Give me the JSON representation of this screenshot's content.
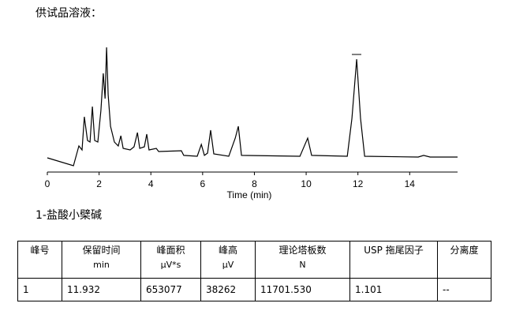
{
  "header": {
    "title": "供试品溶液："
  },
  "chart_data": {
    "type": "line",
    "xlabel": "Time (min)",
    "color": "#000000",
    "x": [
      0,
      1.01,
      1.22,
      1.34,
      1.43,
      1.55,
      1.65,
      1.74,
      1.83,
      1.95,
      2.07,
      2.16,
      2.23,
      2.29,
      2.35,
      2.44,
      2.59,
      2.74,
      2.84,
      2.93,
      3.2,
      3.35,
      3.48,
      3.57,
      3.75,
      3.84,
      3.93,
      4.21,
      4.3,
      5.18,
      5.27,
      5.79,
      5.95,
      6.07,
      6.19,
      6.31,
      6.43,
      7.01,
      7.26,
      7.38,
      7.5,
      9.76,
      10.06,
      10.21,
      11.59,
      11.77,
      11.95,
      12.1,
      12.26,
      14.33,
      14.54,
      14.79,
      15.85
    ],
    "values": [
      9.4,
      3.1,
      18.8,
      15.6,
      41.9,
      23.1,
      21.9,
      50,
      23.1,
      21.9,
      46.9,
      76.3,
      56.3,
      96.9,
      59.4,
      34.4,
      21.9,
      18.8,
      26.9,
      16.9,
      15.6,
      18.1,
      29.4,
      16.9,
      18.1,
      28.1,
      15.6,
      16.9,
      14.4,
      15,
      11.3,
      10.6,
      20,
      11.3,
      13.1,
      31.3,
      12.5,
      10.6,
      25,
      34.4,
      11.3,
      10.6,
      25,
      11.3,
      10.6,
      40.6,
      87.5,
      40.6,
      10.6,
      10,
      11.3,
      10,
      10
    ],
    "xlim": [
      0,
      15.85
    ],
    "xticks": [
      0,
      2,
      4,
      6,
      8,
      10,
      12,
      14
    ],
    "ylim": [
      0,
      100
    ]
  },
  "section": {
    "heading": "1-盐酸小檗碱"
  },
  "table": {
    "columns": [
      {
        "name": "峰号"
      },
      {
        "name": "保留时间",
        "unit": "min"
      },
      {
        "name": "峰面积",
        "unit": "µV*s"
      },
      {
        "name": "峰高",
        "unit": "µV"
      },
      {
        "name": "理论塔板数",
        "unit": "N"
      },
      {
        "name": "USP 拖尾因子"
      },
      {
        "name": "分离度"
      }
    ],
    "rows": [
      [
        "1",
        "11.932",
        "653077",
        "38262",
        "11701.530",
        "1.101",
        "--"
      ]
    ]
  }
}
